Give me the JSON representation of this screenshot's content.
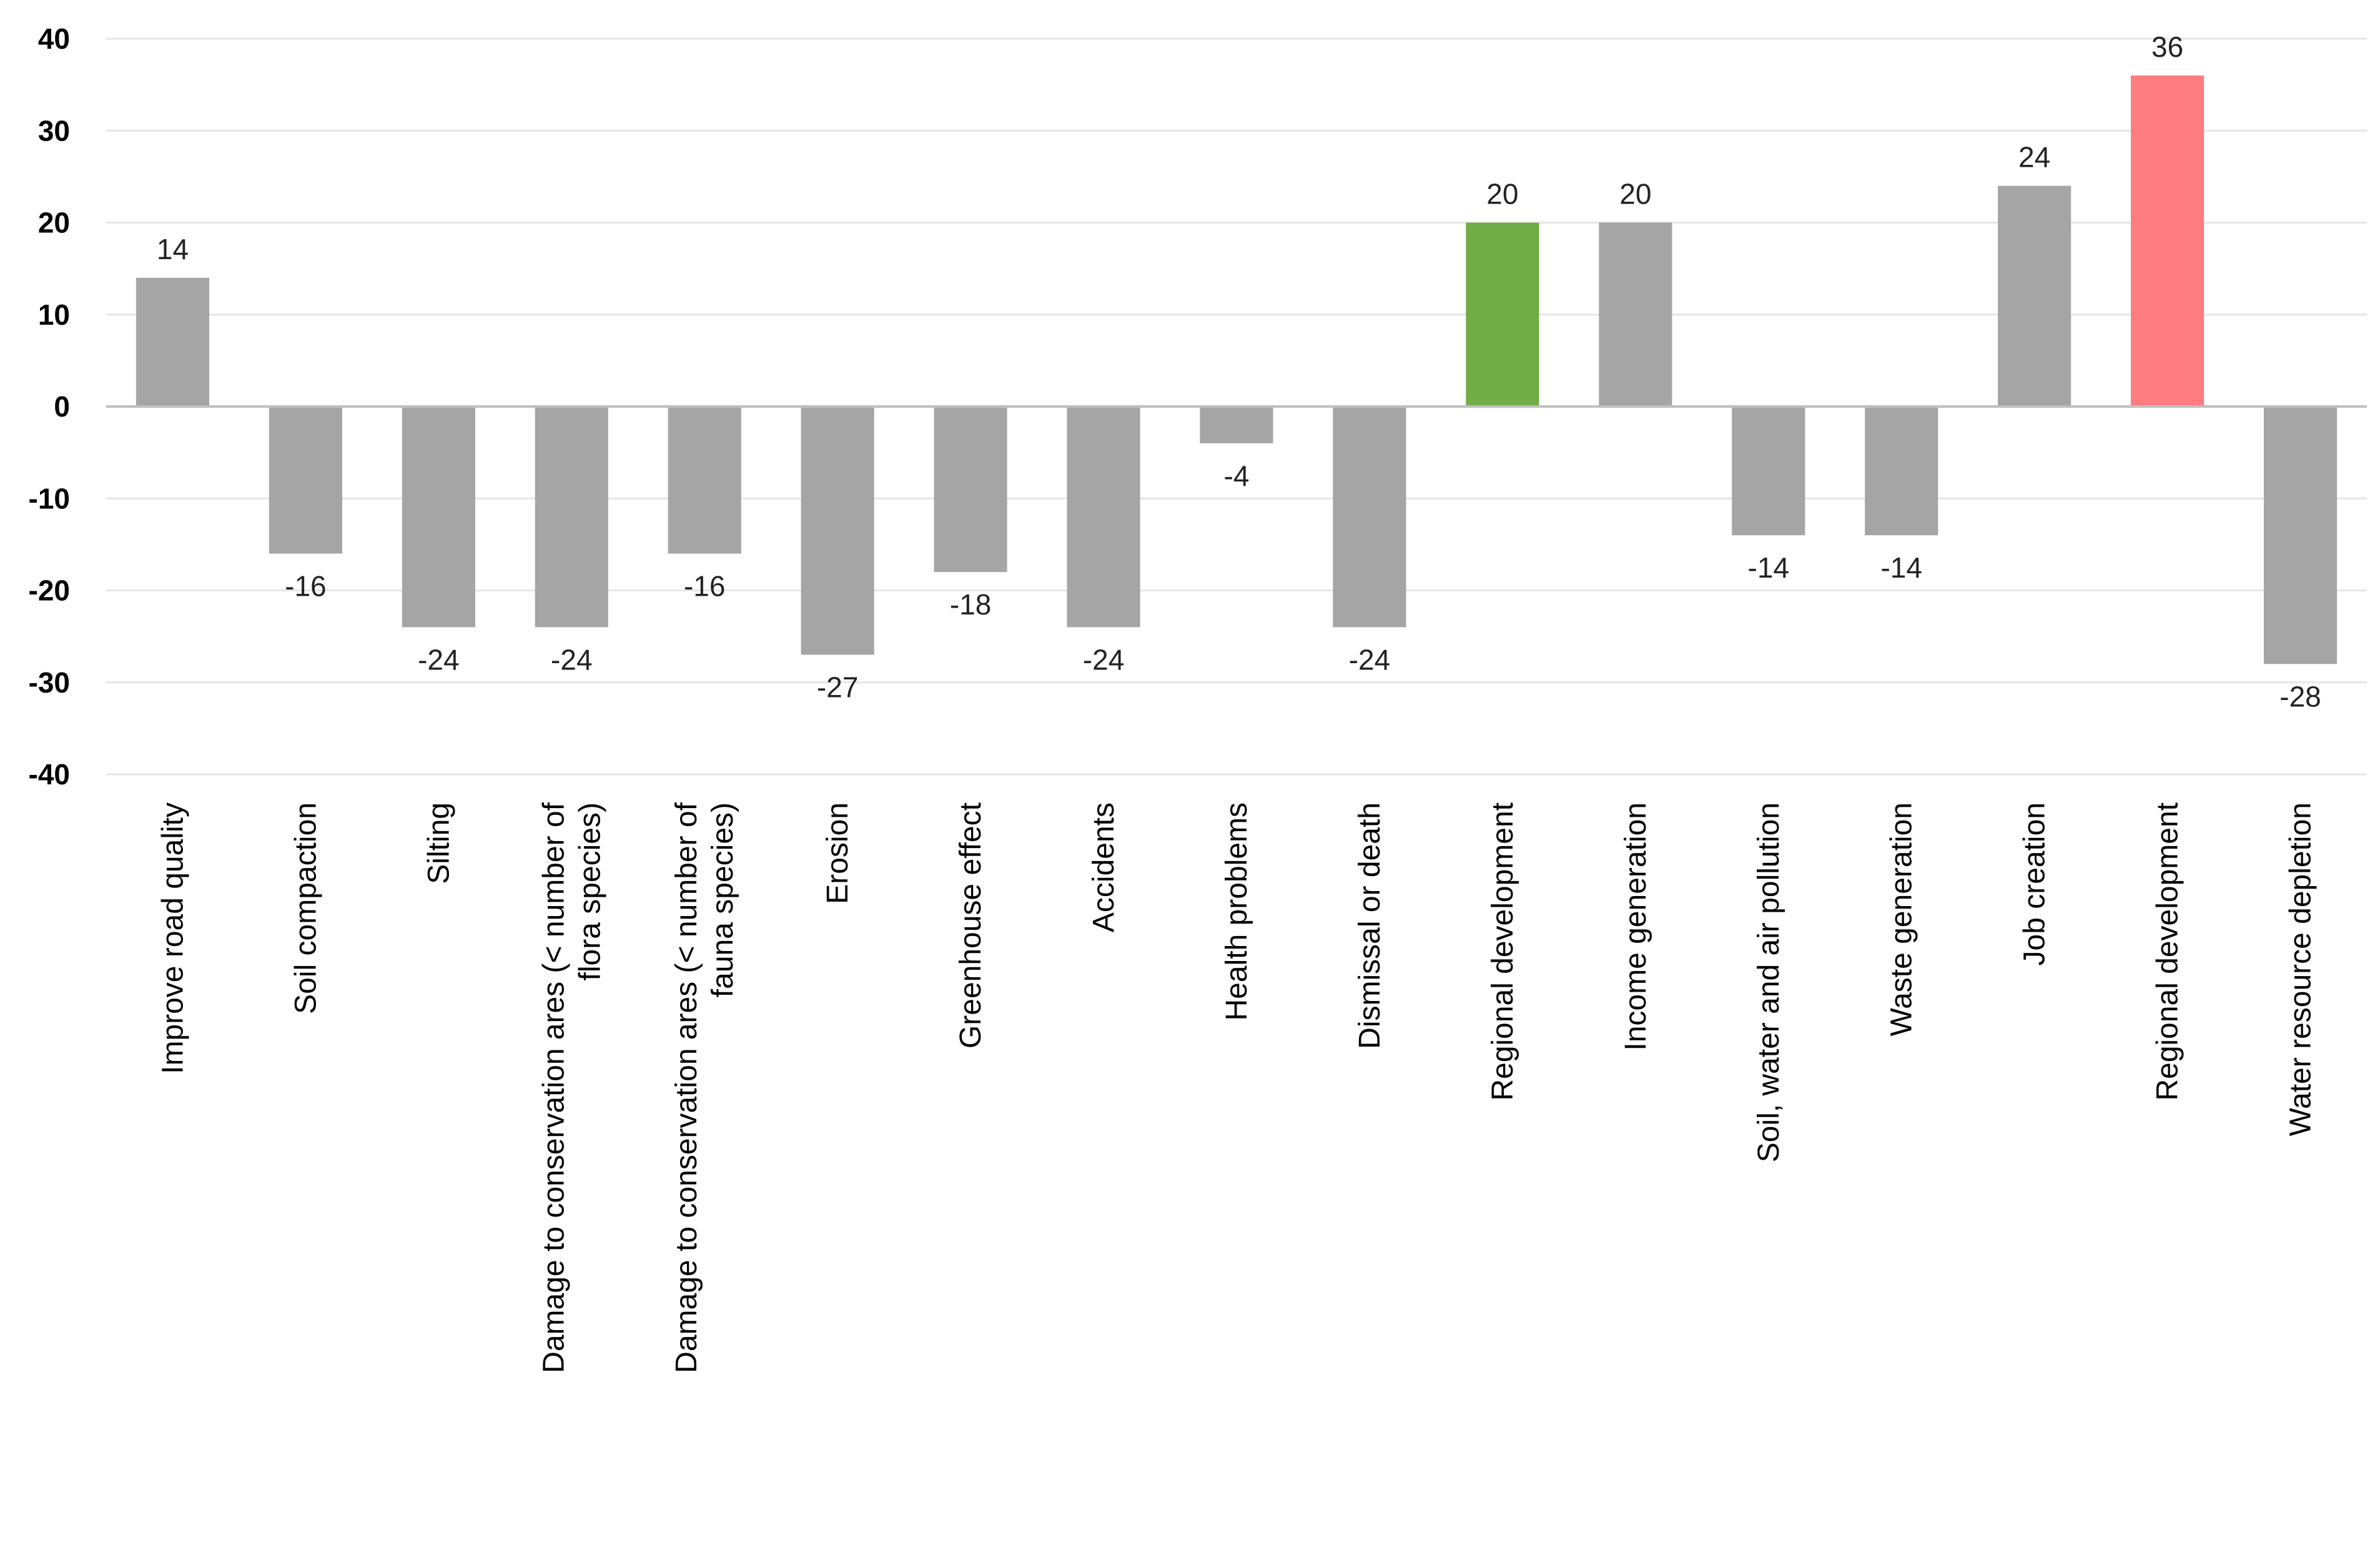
{
  "chart_data": {
    "type": "bar",
    "categories": [
      "Improve  road  quality",
      "Soil compaction",
      "Silting",
      [
        "Damage to conservation  ares (< number of",
        "flora species)"
      ],
      [
        "Damage to conservation  ares (< number of",
        "fauna species)"
      ],
      "Erosion",
      "Greenhouse   effect",
      "Accidents",
      "Health  problems",
      "Dismissal  or death",
      "Regional  development",
      "Income  generation",
      "Soil, water and air pollution",
      "Waste generation",
      "Job creation",
      "Regional  development",
      "Water resource  depletion"
    ],
    "values": [
      14,
      -16,
      -24,
      -24,
      -16,
      -27,
      -18,
      -24,
      -4,
      -24,
      20,
      20,
      -14,
      -14,
      24,
      36,
      -28
    ],
    "data_labels": [
      "14",
      "-16",
      "-24",
      "-24",
      "-16",
      "-27",
      "-18",
      "-24",
      "-4",
      "-24",
      "20",
      "20",
      "-14",
      "-14",
      "24",
      "36",
      "-28"
    ],
    "bar_colors": [
      "#a5a5a5",
      "#a5a5a5",
      "#a5a5a5",
      "#a5a5a5",
      "#a5a5a5",
      "#a5a5a5",
      "#a5a5a5",
      "#a5a5a5",
      "#a5a5a5",
      "#a5a5a5",
      "#70ad47",
      "#a5a5a5",
      "#a5a5a5",
      "#a5a5a5",
      "#a5a5a5",
      "#ff7c80",
      "#a5a5a5"
    ],
    "y_ticks": [
      40,
      30,
      20,
      10,
      0,
      -10,
      -20,
      -30,
      -40
    ],
    "ylim": [
      -40,
      40
    ],
    "grid": true,
    "title": "",
    "xlabel": "",
    "ylabel": ""
  }
}
